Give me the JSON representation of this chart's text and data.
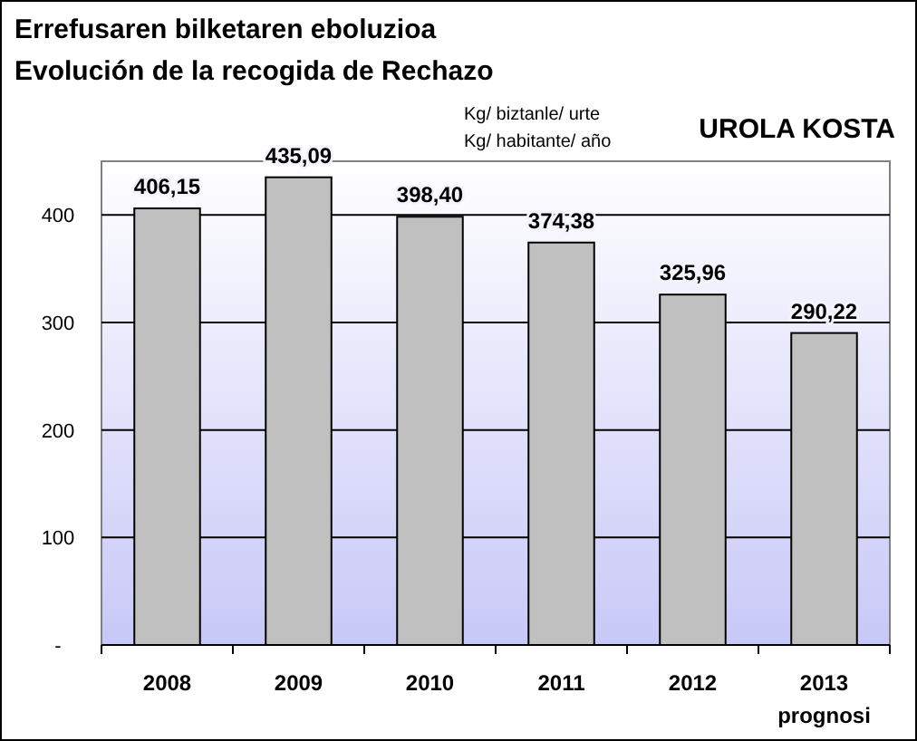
{
  "chart_data": {
    "type": "bar",
    "title": "Errefusaren bilketaren eboluzioa",
    "subtitle": "Evolución de la recogida de Rechazo",
    "annotations": [
      "Kg/ biztanle/ urte",
      "Kg/ habitante/ año",
      "UROLA KOSTA"
    ],
    "categories": [
      "2008",
      "2009",
      "2010",
      "2011",
      "2012",
      "2013\nprognosi"
    ],
    "values": [
      406.15,
      435.09,
      398.4,
      374.38,
      325.96,
      290.22
    ],
    "value_labels": [
      "406,15",
      "435,09",
      "398,40",
      "374,38",
      "325,96",
      "290,22"
    ],
    "color": "#c0c0c0",
    "ylim": [
      0,
      450
    ],
    "yticks": [
      {
        "value": 0,
        "label": "-"
      },
      100,
      200,
      300,
      400
    ],
    "grid": "y"
  }
}
